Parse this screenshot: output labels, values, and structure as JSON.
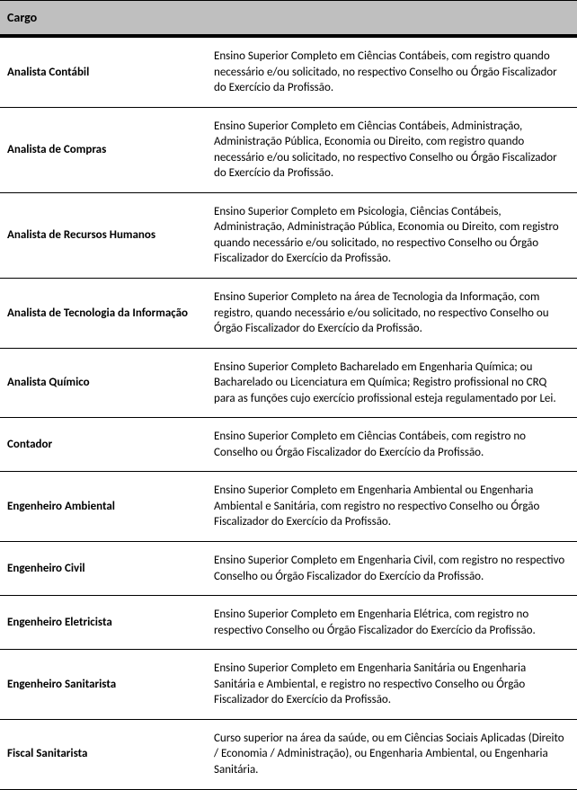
{
  "header": {
    "cargo": "Cargo"
  },
  "rows": [
    {
      "cargo": "Analista Contábil",
      "desc": "Ensino Superior Completo em Ciências Contábeis, com registro quando necessário e/ou solicitado, no respectivo Conselho ou Órgão Fiscalizador do Exercício da Profissão."
    },
    {
      "cargo": "Analista de Compras",
      "desc": "Ensino Superior Completo em Ciências Contábeis, Administração, Administração Pública, Economia ou Direito, com registro quando necessário e/ou solicitado, no respectivo Conselho ou Órgão Fiscalizador do Exercício da Profissão."
    },
    {
      "cargo": "Analista de Recursos Humanos",
      "desc": "Ensino Superior Completo em Psicologia, Ciências Contábeis, Administração, Administração Pública, Economia ou Direito, com registro quando necessário e/ou solicitado, no respectivo Conselho ou Órgão Fiscalizador do Exercício da Profissão."
    },
    {
      "cargo": "Analista de Tecnologia da Informação",
      "desc": "Ensino Superior Completo na área de Tecnologia da Informação, com registro, quando necessário e/ou solicitado, no respectivo Conselho ou Órgão Fiscalizador do Exercício da Profissão."
    },
    {
      "cargo": "Analista Químico",
      "desc": "Ensino Superior Completo Bacharelado em Engenharia Química; ou Bacharelado ou Licenciatura em Química; Registro profissional no CRQ para as funções cujo exercício profissional esteja regulamentado por Lei."
    },
    {
      "cargo": "Contador",
      "desc": "Ensino Superior Completo em Ciências Contábeis, com registro no Conselho ou Órgão Fiscalizador do Exercício da Profissão."
    },
    {
      "cargo": "Engenheiro Ambiental",
      "desc": "Ensino Superior Completo em Engenharia Ambiental ou Engenharia Ambiental e Sanitária, com registro no respectivo Conselho ou Órgão Fiscalizador do Exercício da Profissão."
    },
    {
      "cargo": "Engenheiro Civil",
      "desc": "Ensino Superior Completo em Engenharia Civil, com registro no respectivo Conselho ou Órgão Fiscalizador do Exercício da Profissão."
    },
    {
      "cargo": "Engenheiro Eletricista",
      "desc": "Ensino Superior Completo em Engenharia Elétrica, com registro no respectivo Conselho ou Órgão Fiscalizador do Exercício da Profissão."
    },
    {
      "cargo": "Engenheiro Sanitarista",
      "desc": "Ensino Superior Completo em Engenharia Sanitária ou Engenharia Sanitária e Ambiental, e registro no respectivo Conselho ou Órgão Fiscalizador do Exercício da Profissão."
    },
    {
      "cargo": "Fiscal Sanitarista",
      "desc": "Curso superior na área da saúde, ou em Ciências Sociais Aplicadas (Direito / Economia / Administração), ou Engenharia Ambiental, ou Engenharia Sanitária."
    }
  ],
  "style": {
    "header_bg": "#bfbfbf",
    "border_color": "#000000",
    "text_color": "#000000",
    "font_family": "Calibri, Arial, sans-serif",
    "font_size_header": 14,
    "font_size_body": 13,
    "cargo_col_width": 230
  }
}
